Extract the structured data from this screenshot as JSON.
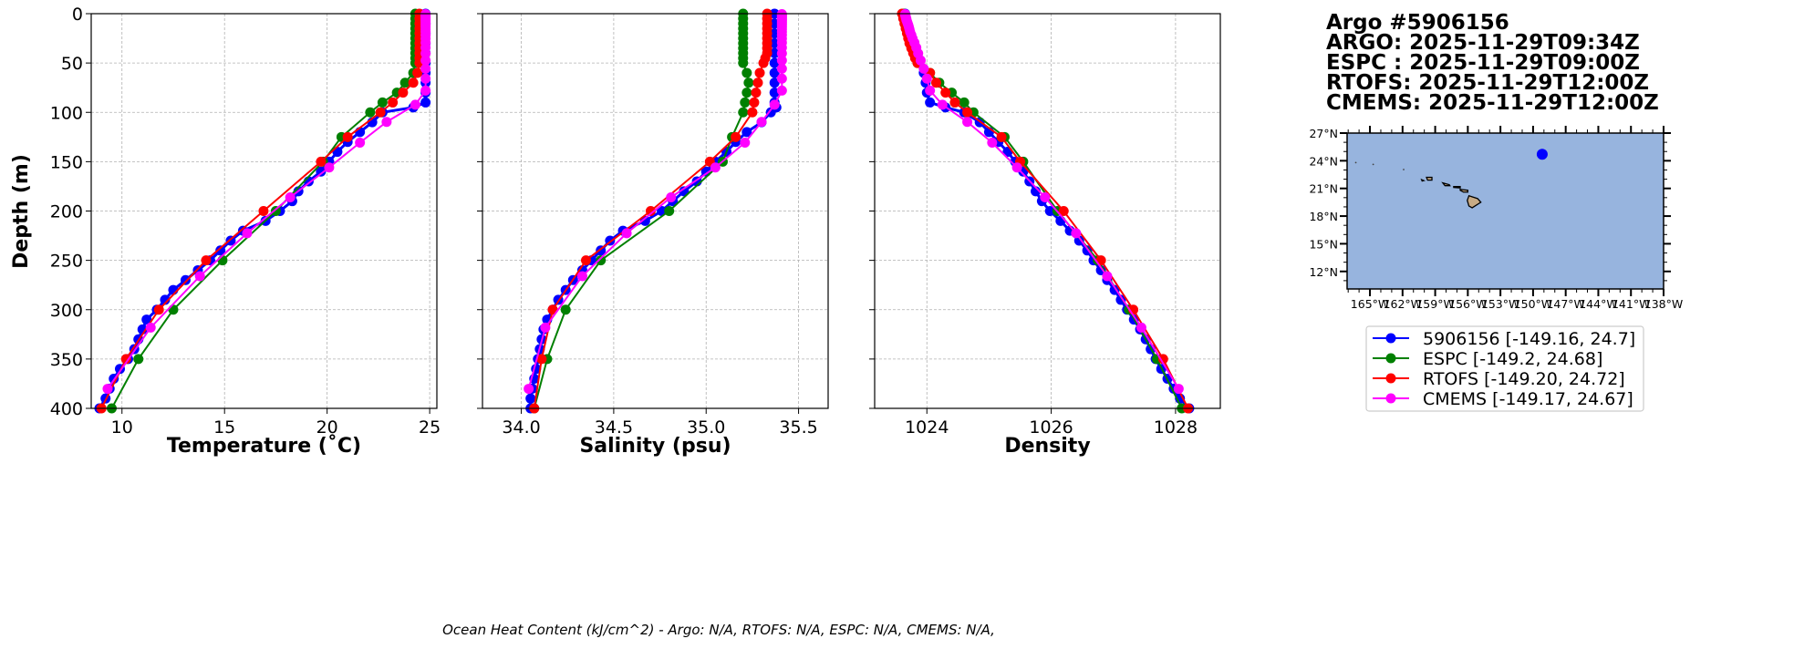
{
  "title": {
    "lines": [
      "Argo #5906156",
      "ARGO: 2025-11-29T09:34Z",
      "ESPC : 2025-11-29T09:00Z",
      "RTOFS: 2025-11-29T12:00Z",
      "CMEMS: 2025-11-29T12:00Z"
    ]
  },
  "footer": "Ocean Heat Content (kJ/cm^2) - Argo: N/A,  RTOFS: N/A,  ESPC: N/A,  CMEMS: N/A,",
  "colors": {
    "argo": "#0000ff",
    "espc": "#008000",
    "rtofs": "#ff0000",
    "cmems": "#ff00ff",
    "ocean": "#97b4de",
    "land": "#c8ab85"
  },
  "chart_data": [
    {
      "type": "line",
      "panel": "temperature",
      "xlabel": "Temperature (˚C)",
      "ylabel": "Depth (m)",
      "xlim": [
        8.5,
        25.35
      ],
      "ylim": [
        400,
        0
      ],
      "xticks": [
        10,
        15,
        20,
        25
      ],
      "xtick_labels": [
        "10",
        "15",
        "20",
        "25"
      ],
      "yticks": [
        0,
        50,
        100,
        150,
        200,
        250,
        300,
        350,
        400
      ],
      "ytick_labels": [
        "0",
        "50",
        "100",
        "150",
        "200",
        "250",
        "300",
        "350",
        "400"
      ],
      "grid": true
    },
    {
      "type": "line",
      "panel": "salinity",
      "xlabel": "Salinity (psu)",
      "xlim": [
        33.79,
        35.66
      ],
      "ylim": [
        400,
        0
      ],
      "xticks": [
        34.0,
        34.5,
        35.0,
        35.5
      ],
      "xtick_labels": [
        "34.0",
        "34.5",
        "35.0",
        "35.5"
      ],
      "grid": true
    },
    {
      "type": "line",
      "panel": "density",
      "xlabel": "Density",
      "xlim": [
        1023.16,
        1028.72
      ],
      "ylim": [
        400,
        0
      ],
      "xticks": [
        1024,
        1026,
        1028
      ],
      "xtick_labels": [
        "1024",
        "1026",
        "1028"
      ],
      "grid": true
    },
    {
      "type": "scatter",
      "panel": "map",
      "xlim": [
        -167.1,
        -138
      ],
      "ylim": [
        10.1,
        27
      ],
      "lat_ticks": [
        27,
        24,
        21,
        18,
        15,
        12
      ],
      "lat_labels": [
        "27°N",
        "24°N",
        "21°N",
        "18°N",
        "15°N",
        "12°N"
      ],
      "lon_ticks": [
        -165,
        -162,
        -159,
        -156,
        -153,
        -150,
        -147,
        -144,
        -141,
        -138
      ],
      "lon_labels": [
        "165°W",
        "162°W",
        "159°W",
        "156°W",
        "153°W",
        "150°W",
        "147°W",
        "144°W",
        "141°W",
        "138°W"
      ],
      "points": [
        {
          "name": "5906156",
          "lon": -149.16,
          "lat": 24.7
        }
      ]
    }
  ],
  "series": [
    {
      "key": "argo",
      "legend": "5906156 [-149.16, 24.7]",
      "depth": [
        0,
        10,
        20,
        30,
        40,
        50,
        60,
        70,
        80,
        90,
        95,
        100,
        110,
        120,
        130,
        140,
        150,
        160,
        170,
        180,
        190,
        200,
        210,
        220,
        230,
        240,
        250,
        260,
        270,
        280,
        290,
        300,
        310,
        320,
        330,
        340,
        350,
        360,
        370,
        380,
        390,
        400
      ],
      "temperature": [
        24.8,
        24.8,
        24.8,
        24.8,
        24.8,
        24.8,
        24.8,
        24.8,
        24.8,
        24.8,
        24.2,
        22.7,
        22.2,
        21.6,
        21.0,
        20.5,
        20.1,
        19.7,
        19.1,
        18.6,
        18.3,
        17.7,
        17.0,
        15.9,
        15.3,
        14.8,
        14.3,
        13.7,
        13.1,
        12.5,
        12.1,
        11.7,
        11.2,
        11.0,
        10.8,
        10.6,
        10.3,
        9.9,
        9.6,
        9.4,
        9.2,
        8.9
      ],
      "salinity": [
        35.37,
        35.37,
        35.37,
        35.37,
        35.37,
        35.37,
        35.37,
        35.37,
        35.37,
        35.37,
        35.38,
        35.35,
        35.3,
        35.22,
        35.16,
        35.11,
        35.05,
        35.0,
        34.95,
        34.88,
        34.82,
        34.76,
        34.67,
        34.55,
        34.48,
        34.43,
        34.38,
        34.33,
        34.28,
        34.24,
        34.2,
        34.17,
        34.14,
        34.12,
        34.11,
        34.1,
        34.09,
        34.08,
        34.07,
        34.06,
        34.05,
        34.05
      ],
      "density": [
        1023.65,
        1023.68,
        1023.72,
        1023.75,
        1023.8,
        1023.88,
        1023.95,
        1023.98,
        1024.0,
        1024.05,
        1024.3,
        1024.6,
        1024.85,
        1025.0,
        1025.15,
        1025.3,
        1025.42,
        1025.55,
        1025.65,
        1025.75,
        1025.85,
        1025.98,
        1026.15,
        1026.3,
        1026.45,
        1026.58,
        1026.68,
        1026.8,
        1026.9,
        1027.02,
        1027.12,
        1027.22,
        1027.33,
        1027.43,
        1027.52,
        1027.6,
        1027.68,
        1027.77,
        1027.87,
        1027.97,
        1028.07,
        1028.22
      ]
    },
    {
      "key": "espc",
      "legend": "ESPC [-149.2, 24.68]",
      "depth": [
        0,
        5,
        10,
        15,
        20,
        25,
        30,
        35,
        40,
        45,
        50,
        60,
        70,
        80,
        90,
        100,
        125,
        150,
        200,
        250,
        300,
        350,
        400
      ],
      "temperature": [
        24.3,
        24.3,
        24.3,
        24.3,
        24.3,
        24.3,
        24.3,
        24.3,
        24.3,
        24.3,
        24.3,
        24.2,
        23.8,
        23.4,
        22.7,
        22.1,
        20.7,
        19.8,
        17.5,
        14.9,
        12.5,
        10.8,
        9.5
      ],
      "salinity": [
        35.2,
        35.2,
        35.2,
        35.2,
        35.2,
        35.2,
        35.2,
        35.2,
        35.2,
        35.2,
        35.2,
        35.22,
        35.23,
        35.22,
        35.21,
        35.2,
        35.14,
        35.09,
        34.8,
        34.43,
        34.24,
        34.14,
        34.07
      ],
      "density": [
        1023.62,
        1023.63,
        1023.65,
        1023.67,
        1023.69,
        1023.71,
        1023.73,
        1023.76,
        1023.79,
        1023.82,
        1023.85,
        1024.05,
        1024.2,
        1024.4,
        1024.6,
        1024.75,
        1025.25,
        1025.55,
        1026.1,
        1026.75,
        1027.25,
        1027.7,
        1028.1
      ]
    },
    {
      "key": "rtofs",
      "legend": "RTOFS [-149.20, 24.72]",
      "depth": [
        0,
        5,
        10,
        15,
        20,
        25,
        30,
        35,
        40,
        45,
        50,
        60,
        70,
        80,
        90,
        100,
        125,
        150,
        200,
        250,
        300,
        350,
        400
      ],
      "temperature": [
        24.5,
        24.5,
        24.5,
        24.5,
        24.5,
        24.5,
        24.5,
        24.5,
        24.5,
        24.5,
        24.5,
        24.4,
        24.2,
        23.7,
        23.2,
        22.6,
        21.0,
        19.7,
        16.9,
        14.1,
        11.8,
        10.2,
        9.0
      ],
      "salinity": [
        35.33,
        35.33,
        35.33,
        35.33,
        35.33,
        35.33,
        35.33,
        35.33,
        35.33,
        35.32,
        35.31,
        35.29,
        35.28,
        35.27,
        35.26,
        35.25,
        35.16,
        35.02,
        34.7,
        34.35,
        34.17,
        34.11,
        34.07
      ],
      "density": [
        1023.6,
        1023.62,
        1023.64,
        1023.66,
        1023.68,
        1023.7,
        1023.72,
        1023.75,
        1023.78,
        1023.81,
        1023.85,
        1024.05,
        1024.15,
        1024.3,
        1024.45,
        1024.65,
        1025.2,
        1025.5,
        1026.2,
        1026.8,
        1027.32,
        1027.8,
        1028.2
      ]
    },
    {
      "key": "cmems",
      "legend": "CMEMS [-149.17, 24.67]",
      "depth": [
        0.5,
        1.5,
        2.6,
        3.8,
        5.1,
        6.4,
        7.9,
        9.6,
        11.4,
        13.5,
        15.8,
        18.5,
        21.6,
        25.2,
        29.4,
        34.4,
        40.3,
        47.4,
        55.8,
        65.8,
        77.9,
        92.3,
        109.7,
        130.7,
        155.9,
        186.1,
        222.5,
        266.0,
        318.1,
        380.2
      ],
      "temperature": [
        24.8,
        24.8,
        24.8,
        24.8,
        24.8,
        24.8,
        24.8,
        24.8,
        24.8,
        24.8,
        24.8,
        24.8,
        24.8,
        24.8,
        24.8,
        24.8,
        24.8,
        24.8,
        24.8,
        24.8,
        24.8,
        24.3,
        22.9,
        21.6,
        20.1,
        18.2,
        16.1,
        13.8,
        11.4,
        9.3
      ],
      "salinity": [
        35.41,
        35.41,
        35.41,
        35.41,
        35.41,
        35.41,
        35.41,
        35.41,
        35.41,
        35.41,
        35.41,
        35.41,
        35.41,
        35.41,
        35.41,
        35.41,
        35.41,
        35.41,
        35.41,
        35.41,
        35.41,
        35.37,
        35.3,
        35.21,
        35.05,
        34.81,
        34.57,
        34.33,
        34.13,
        34.04
      ],
      "density": [
        1023.65,
        1023.65,
        1023.66,
        1023.66,
        1023.67,
        1023.67,
        1023.68,
        1023.69,
        1023.7,
        1023.71,
        1023.72,
        1023.73,
        1023.75,
        1023.77,
        1023.8,
        1023.83,
        1023.86,
        1023.9,
        1023.95,
        1024.0,
        1024.05,
        1024.25,
        1024.65,
        1025.05,
        1025.45,
        1025.9,
        1026.4,
        1026.9,
        1027.45,
        1028.05
      ]
    }
  ]
}
